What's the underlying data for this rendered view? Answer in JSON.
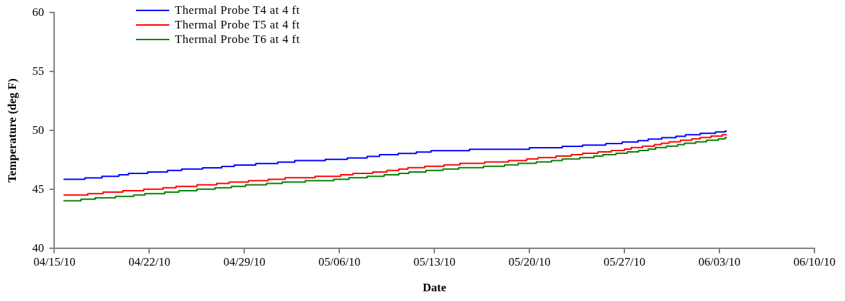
{
  "chart_data": {
    "type": "step",
    "xlabel": "Date",
    "ylabel": "Temperature (deg F)",
    "xlim": [
      "--04-15",
      "--06-10"
    ],
    "xticks": [
      {
        "value": "--04-15",
        "label": "04/15/10"
      },
      {
        "value": "--04-22",
        "label": "04/22/10"
      },
      {
        "value": "--04-29",
        "label": "04/29/10"
      },
      {
        "value": "--05-06",
        "label": "05/06/10"
      },
      {
        "value": "--05-13",
        "label": "05/13/10"
      },
      {
        "value": "--05-20",
        "label": "05/20/10"
      },
      {
        "value": "--05-27",
        "label": "05/27/10"
      },
      {
        "value": "--06-03",
        "label": "06/03/10"
      },
      {
        "value": "--06-10",
        "label": "06/10/10"
      }
    ],
    "ylim": [
      40,
      60
    ],
    "yticks": [
      40,
      45,
      50,
      55,
      60
    ],
    "grid": false,
    "legend": "top left",
    "marker": "none",
    "line_style": "solid",
    "series": [
      {
        "name": "Thermal Probe T4 at 4 ft",
        "color": "#0000ff",
        "x": [
          "--04-15T17:00",
          "--04-17T06:00",
          "--04-18T12:00",
          "--04-19T18:00",
          "--04-20T11:00",
          "--04-21T21:00",
          "--04-23T08:00",
          "--04-24T09:00",
          "--04-25T22:00",
          "--04-27T08:00",
          "--04-28T06:00",
          "--04-29T20:00",
          "--05-01T11:00",
          "--05-02T17:00",
          "--05-04T23:00",
          "--05-06T14:00",
          "--05-08T01:00",
          "--05-08T23:00",
          "--05-10T08:00",
          "--05-11T16:00",
          "--05-12T18:00",
          "--05-15T14:00",
          "--05-20T00:00",
          "--05-22T10:00",
          "--05-23T22:00",
          "--05-25T15:00",
          "--05-26T20:00",
          "--05-28T00:00",
          "--05-28T18:00",
          "--05-29T18:00",
          "--05-30T19:00",
          "--05-31T12:00",
          "--06-01T14:00",
          "--06-02T17:00",
          "--06-03T10:00",
          "--06-03T12:00"
        ],
        "values": [
          45.87,
          45.98,
          46.12,
          46.24,
          46.36,
          46.48,
          46.61,
          46.73,
          46.83,
          46.95,
          47.07,
          47.2,
          47.32,
          47.46,
          47.56,
          47.68,
          47.8,
          47.95,
          48.05,
          48.17,
          48.29,
          48.41,
          48.54,
          48.66,
          48.76,
          48.9,
          49.02,
          49.15,
          49.27,
          49.39,
          49.51,
          49.65,
          49.76,
          49.88,
          49.96,
          49.96
        ]
      },
      {
        "name": "Thermal Probe T5 at 4 ft",
        "color": "#ff0000",
        "x": [
          "--04-15T17:00",
          "--04-17T11:00",
          "--04-18T14:00",
          "--04-20T01:00",
          "--04-21T14:00",
          "--04-23T00:00",
          "--04-23T23:00",
          "--04-25T12:00",
          "--04-26T23:00",
          "--04-27T21:00",
          "--04-29T07:00",
          "--04-30T18:00",
          "--05-02T00:00",
          "--05-04T05:00",
          "--05-06T02:00",
          "--05-07T00:00",
          "--05-08T11:00",
          "--05-09T12:00",
          "--05-10T09:00",
          "--05-11T01:00",
          "--05-12T07:00",
          "--05-13T17:00",
          "--05-14T21:00",
          "--05-16T17:00",
          "--05-18T11:00",
          "--05-19T19:00",
          "--05-20T15:00",
          "--05-21T23:00",
          "--05-23T02:00",
          "--05-23T22:00",
          "--05-25T01:00",
          "--05-26T01:00",
          "--05-27T00:00",
          "--05-27T12:00",
          "--05-28T08:00",
          "--05-29T05:00",
          "--05-29T17:00",
          "--05-30T07:00",
          "--05-31T03:00",
          "--05-31T23:00",
          "--06-01T14:00",
          "--06-02T09:00",
          "--06-03T05:00",
          "--06-03T12:00"
        ],
        "values": [
          44.53,
          44.65,
          44.78,
          44.9,
          45.02,
          45.14,
          45.26,
          45.39,
          45.51,
          45.63,
          45.75,
          45.87,
          46.0,
          46.12,
          46.24,
          46.36,
          46.48,
          46.61,
          46.73,
          46.85,
          46.97,
          47.09,
          47.22,
          47.34,
          47.46,
          47.58,
          47.7,
          47.83,
          47.95,
          48.07,
          48.19,
          48.31,
          48.43,
          48.56,
          48.68,
          48.8,
          48.92,
          49.04,
          49.17,
          49.29,
          49.41,
          49.53,
          49.65,
          49.65
        ]
      },
      {
        "name": "Thermal Probe T6 at 4 ft",
        "color": "#008000",
        "x": [
          "--04-15T17:00",
          "--04-16T23:00",
          "--04-18T00:00",
          "--04-19T12:00",
          "--04-20T20:00",
          "--04-21T16:00",
          "--04-23T03:00",
          "--04-24T04:00",
          "--04-25T12:00",
          "--04-26T20:00",
          "--04-28T01:00",
          "--04-29T02:00",
          "--04-30T15:00",
          "--05-01T19:00",
          "--05-03T12:00",
          "--05-05T14:00",
          "--05-06T17:00",
          "--05-08T01:00",
          "--05-09T07:00",
          "--05-10T09:00",
          "--05-11T03:00",
          "--05-12T09:00",
          "--05-13T15:00",
          "--05-14T19:00",
          "--05-16T15:00",
          "--05-18T04:00",
          "--05-19T04:00",
          "--05-20T12:00",
          "--05-21T15:00",
          "--05-22T10:00",
          "--05-23T17:00",
          "--05-24T18:00",
          "--05-25T10:00",
          "--05-26T09:00",
          "--05-27T05:00",
          "--05-28T01:00",
          "--05-28T18:00",
          "--05-29T07:00",
          "--05-30T02:00",
          "--05-30T22:00",
          "--05-31T10:00",
          "--06-01T06:00",
          "--06-02T01:00",
          "--06-02T22:00",
          "--06-03T10:00",
          "--06-03T12:00"
        ],
        "values": [
          44.04,
          44.17,
          44.29,
          44.41,
          44.53,
          44.65,
          44.78,
          44.9,
          45.02,
          45.14,
          45.26,
          45.39,
          45.51,
          45.63,
          45.75,
          45.87,
          46.0,
          46.12,
          46.24,
          46.36,
          46.48,
          46.61,
          46.73,
          46.85,
          46.97,
          47.09,
          47.22,
          47.34,
          47.46,
          47.58,
          47.7,
          47.83,
          47.95,
          48.07,
          48.19,
          48.31,
          48.43,
          48.56,
          48.68,
          48.8,
          48.92,
          49.04,
          49.17,
          49.29,
          49.41,
          49.41
        ]
      }
    ]
  }
}
